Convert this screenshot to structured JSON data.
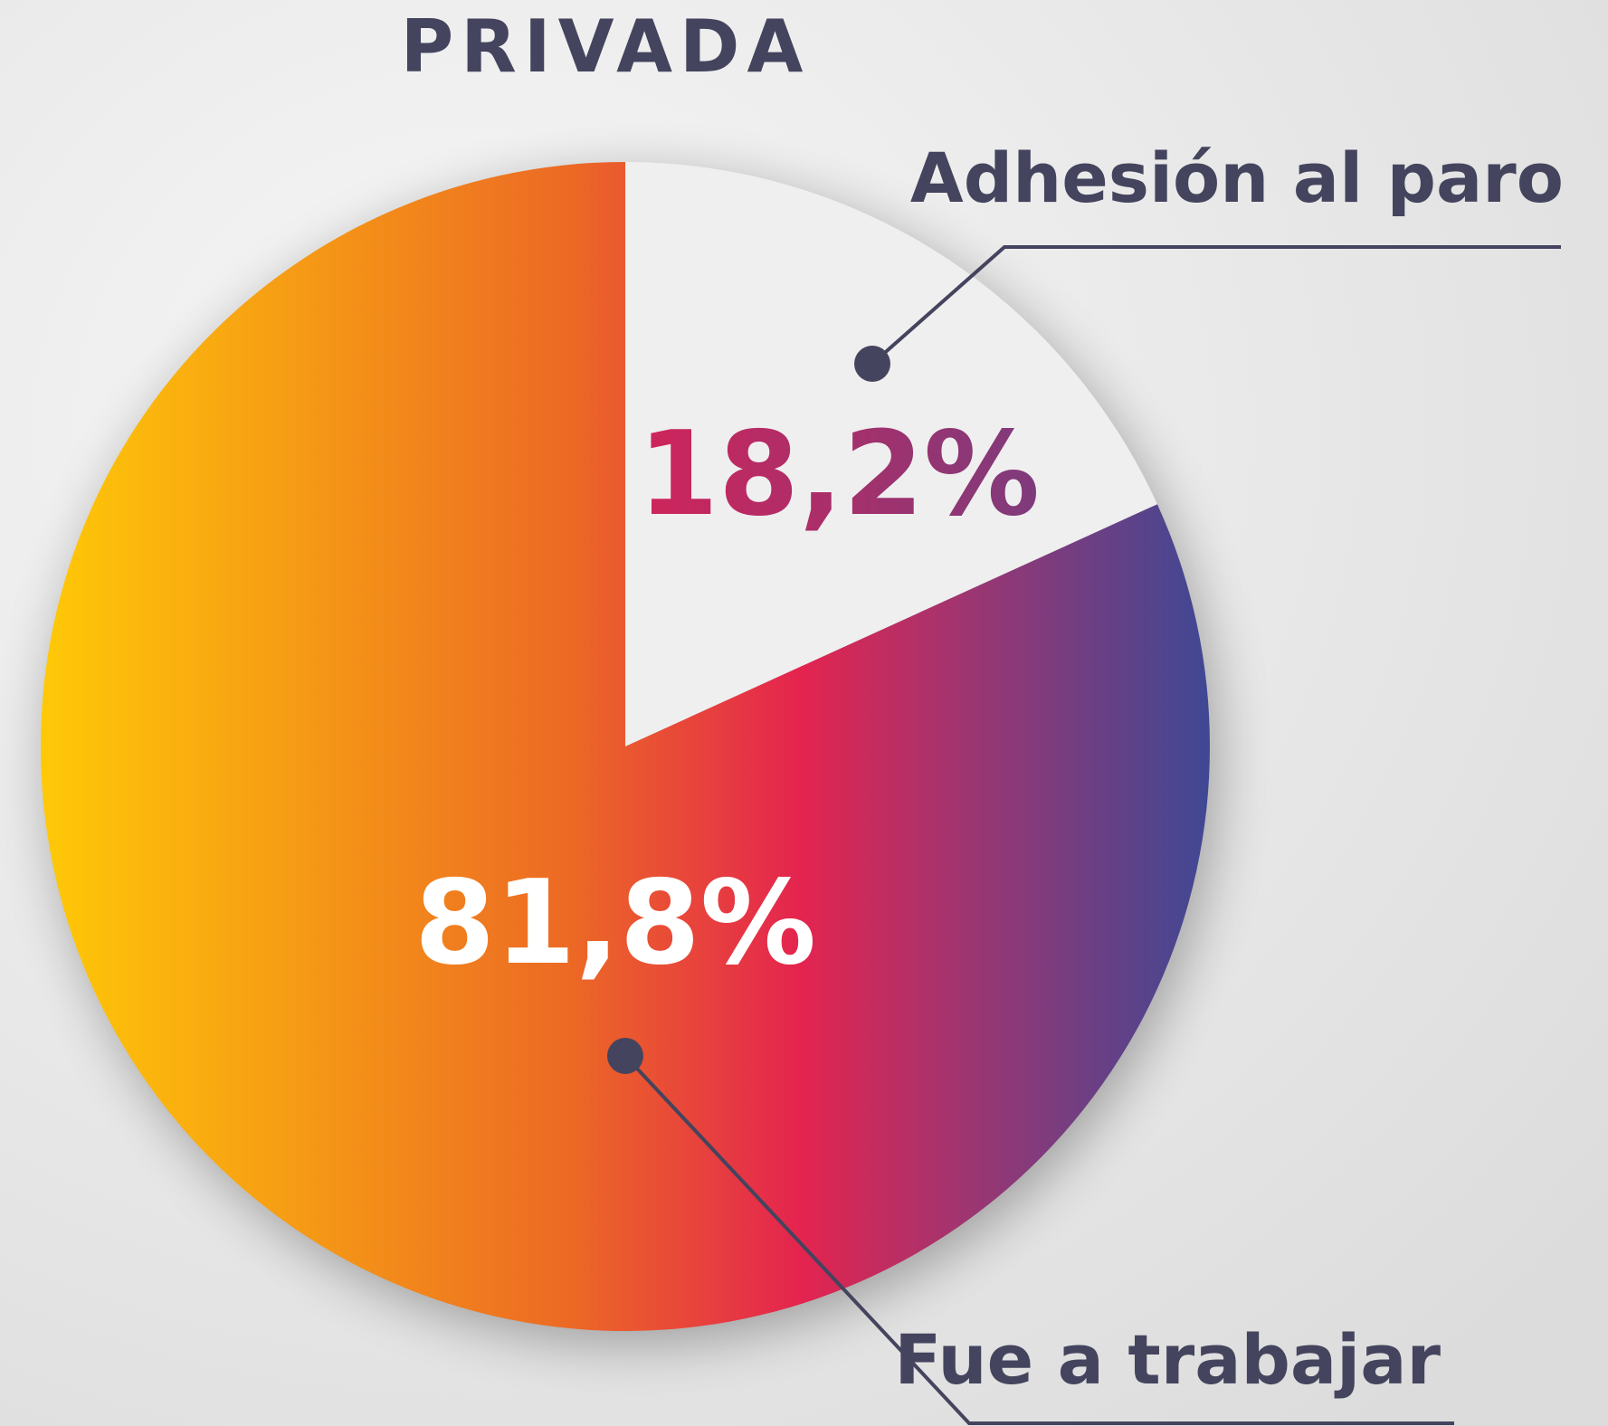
{
  "chart_data": {
    "type": "pie",
    "title": "PRIVADA",
    "categories": [
      "Adhesión al paro",
      "Fue a trabajar"
    ],
    "values": [
      18.2,
      81.8
    ],
    "value_labels": [
      "18,2%",
      "81,8%"
    ],
    "colors": [
      "#efefef",
      "gradient"
    ]
  }
}
